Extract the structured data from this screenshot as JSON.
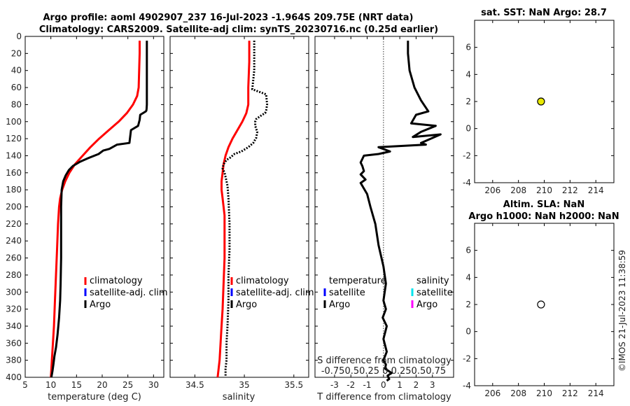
{
  "title": {
    "line1": "Argo profile: aoml 4902907_237 16-Jul-2023 -1.964S 209.75E (NRT data)",
    "line2": "Climatology: CARS2009. Satellite-adj clim: synTS_20230716.nc (0.25d earlier)"
  },
  "footer": "©IMOS 21-Jul-2023 11:38:59",
  "colors": {
    "climatology": "#ff0000",
    "satellite": "#0000ff",
    "argo": "#000000",
    "sat_salinity": "#00e5ee",
    "argo_salinity": "#ff00ff",
    "sst_marker": "#e8e800"
  },
  "chart_data": [
    {
      "type": "line",
      "id": "temperature",
      "xlabel": "temperature (deg C)",
      "xlim": [
        5,
        32
      ],
      "ylim": [
        0,
        400
      ],
      "xticks": [
        "5",
        "10",
        "15",
        "20",
        "25",
        "30"
      ],
      "yticks": [
        "0",
        "20",
        "40",
        "60",
        "80",
        "100",
        "120",
        "140",
        "160",
        "180",
        "200",
        "220",
        "240",
        "260",
        "280",
        "300",
        "320",
        "340",
        "360",
        "380",
        "400"
      ],
      "legend": [
        "climatology",
        "satellite-adj. clim",
        "Argo"
      ],
      "series": [
        {
          "name": "climatology",
          "x": [
            27.3,
            27.3,
            27.2,
            27.1,
            26.8,
            26,
            24.8,
            23.2,
            21.3,
            19.4,
            17.7,
            16.2,
            14.7,
            13.6,
            12.8,
            12.2,
            11.8,
            11.6,
            11.4,
            11.2,
            11.0,
            10.8,
            10.6,
            10.4,
            10.2,
            10.0
          ],
          "depth": [
            5,
            20,
            40,
            60,
            70,
            80,
            90,
            100,
            110,
            120,
            130,
            140,
            150,
            160,
            170,
            180,
            190,
            200,
            220,
            250,
            280,
            310,
            340,
            360,
            380,
            400
          ]
        },
        {
          "name": "Argo",
          "x": [
            28.7,
            28.7,
            28.7,
            28.65,
            28.6,
            28.5,
            27.4,
            27.3,
            27.0,
            25.6,
            25.3,
            22.9,
            21.4,
            20.2,
            19.3,
            17.2,
            15.7,
            14.3,
            13.5,
            12.9,
            12.4,
            12.1,
            12.0,
            12.0,
            12.0,
            11.9,
            11.8,
            11.6,
            11.3,
            11.0,
            10.7,
            10.5,
            10.3,
            10.1
          ],
          "depth": [
            5,
            40,
            80,
            85,
            87,
            88,
            92,
            98,
            105,
            110,
            125,
            127,
            132,
            134,
            138,
            143,
            147,
            152,
            157,
            163,
            170,
            180,
            200,
            230,
            260,
            290,
            310,
            330,
            350,
            365,
            375,
            385,
            393,
            400
          ]
        }
      ]
    },
    {
      "type": "line",
      "id": "salinity",
      "xlabel": "salinity",
      "xlim": [
        34.25,
        35.65
      ],
      "ylim": [
        0,
        400
      ],
      "xticks": [
        "34.5",
        "35",
        "35.5"
      ],
      "legend": [
        "climatology",
        "satellite-adj. clim",
        "Argo"
      ],
      "series": [
        {
          "name": "climatology",
          "x": [
            35.05,
            35.05,
            35.04,
            35.04,
            35.04,
            35.02,
            34.98,
            34.93,
            34.88,
            34.84,
            34.81,
            34.79,
            34.78,
            34.77,
            34.77,
            34.78,
            34.79,
            34.8,
            34.8,
            34.8,
            34.79,
            34.78,
            34.77,
            34.76,
            34.75,
            34.74,
            34.73
          ],
          "depth": [
            5,
            30,
            60,
            70,
            80,
            90,
            100,
            110,
            120,
            130,
            140,
            150,
            160,
            170,
            180,
            190,
            200,
            210,
            230,
            260,
            290,
            320,
            340,
            360,
            380,
            390,
            400
          ]
        },
        {
          "name": "Argo",
          "x": [
            35.1,
            35.1,
            35.08,
            35.22,
            35.23,
            35.22,
            35.21,
            35.18,
            35.12,
            35.11,
            35.11,
            35.13,
            35.12,
            35.09,
            35.04,
            34.97,
            34.9,
            34.86,
            34.82,
            34.79,
            34.78,
            34.8,
            34.83,
            34.84,
            34.85,
            34.85,
            34.84,
            34.84,
            34.83,
            34.82,
            34.82,
            34.82,
            34.81,
            34.81
          ],
          "depth": [
            5,
            40,
            62,
            68,
            80,
            87,
            90,
            92,
            97,
            100,
            105,
            112,
            119,
            125,
            130,
            135,
            138,
            142,
            145,
            150,
            155,
            160,
            175,
            190,
            220,
            250,
            280,
            310,
            340,
            360,
            370,
            380,
            390,
            400
          ]
        }
      ]
    },
    {
      "type": "line",
      "id": "difference",
      "xlabel": "T difference from climatology",
      "xlabel2": "S difference from climatology",
      "xlim": [
        -4.2,
        4.3
      ],
      "ylim": [
        0,
        400
      ],
      "xticks": [
        "-3",
        "-2",
        "-1",
        "0",
        "1",
        "2",
        "3"
      ],
      "s_ticks": "-0.750.50.25 0  0.250.50.75",
      "legend_left": [
        "temperature",
        "satellite",
        "Argo"
      ],
      "legend_right": [
        "salinity",
        "satellite",
        "Argo"
      ],
      "series": [
        {
          "name": "T difference",
          "x": [
            1.5,
            1.5,
            1.6,
            1.9,
            2.3,
            2.75,
            2.0,
            1.7,
            3.2,
            2.3,
            1.8,
            3.5,
            2.3,
            2.6,
            -0.3,
            0.4,
            -0.3,
            -1.2,
            -1.4,
            -1.3,
            -1.2,
            -1.4,
            -1.1,
            -1.4,
            -1.0,
            -0.8,
            -0.5,
            -0.3,
            0.0,
            0.15,
            0.0,
            0.15,
            -0.05,
            0.2,
            0.0,
            0.2,
            0.0,
            0.15,
            0.1,
            0.5,
            0.25,
            0.3,
            0.35,
            0.2
          ],
          "depth": [
            5,
            20,
            40,
            60,
            75,
            88,
            92,
            102,
            105,
            112,
            118,
            115,
            125,
            127,
            130,
            135,
            138,
            140,
            148,
            152,
            158,
            162,
            168,
            172,
            185,
            200,
            220,
            245,
            270,
            290,
            310,
            320,
            330,
            340,
            355,
            370,
            380,
            385,
            390,
            395,
            398,
            400,
            402,
            404
          ]
        }
      ]
    },
    {
      "type": "scatter",
      "id": "sst",
      "title": "sat. SST: NaN Argo: 28.7",
      "xlim": [
        204.6,
        215.4
      ],
      "ylim": [
        -4,
        8
      ],
      "xticks": [
        "206",
        "208",
        "210",
        "212",
        "214"
      ],
      "yticks": [
        "-4",
        "-2",
        "0",
        "2",
        "4",
        "6"
      ],
      "points": [
        {
          "x": 209.75,
          "y": 2
        }
      ]
    },
    {
      "type": "scatter",
      "id": "sla",
      "title_line1": "Altim. SLA: NaN",
      "title_line2": "Argo h1000: NaN h2000: NaN",
      "xlim": [
        204.6,
        215.4
      ],
      "ylim": [
        -4,
        8
      ],
      "xticks": [
        "206",
        "208",
        "210",
        "212",
        "214"
      ],
      "yticks": [
        "-4",
        "-2",
        "0",
        "2",
        "4",
        "6"
      ],
      "points": [
        {
          "x": 209.75,
          "y": 2
        }
      ]
    }
  ]
}
